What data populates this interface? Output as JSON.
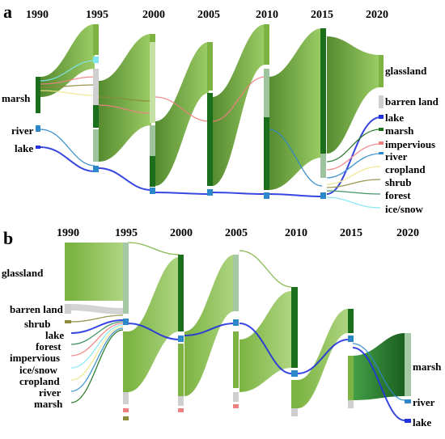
{
  "panel_a": {
    "letter": "a",
    "years": [
      "1990",
      "1995",
      "2000",
      "2005",
      "2010",
      "2015",
      "2020"
    ],
    "left_labels": [
      "marsh",
      "river",
      "lake"
    ],
    "right_labels": [
      "glassland",
      "barren land",
      "lake",
      "marsh",
      "impervious",
      "river",
      "cropland",
      "shrub",
      "forest",
      "ice/snow"
    ]
  },
  "panel_b": {
    "letter": "b",
    "years": [
      "1990",
      "1995",
      "2000",
      "2005",
      "2010",
      "2015",
      "2020"
    ],
    "left_labels": [
      "glassland",
      "barren land",
      "shrub",
      "lake",
      "forest",
      "impervious",
      "ice/snow",
      "cropland",
      "river",
      "marsh"
    ],
    "right_labels": [
      "marsh",
      "river",
      "lake"
    ]
  },
  "colors": {
    "glassland": "#7cb342",
    "glassland_dark": "#558b2f",
    "barren": "#cfcfcf",
    "lake": "#2233dd",
    "marsh": "#1b6e1b",
    "impervious": "#f08080",
    "river": "#2c88c8",
    "cropland": "#f0e68c",
    "shrub": "#8b8b3a",
    "forest": "#2e8b57",
    "ice": "#7fe6f0"
  }
}
